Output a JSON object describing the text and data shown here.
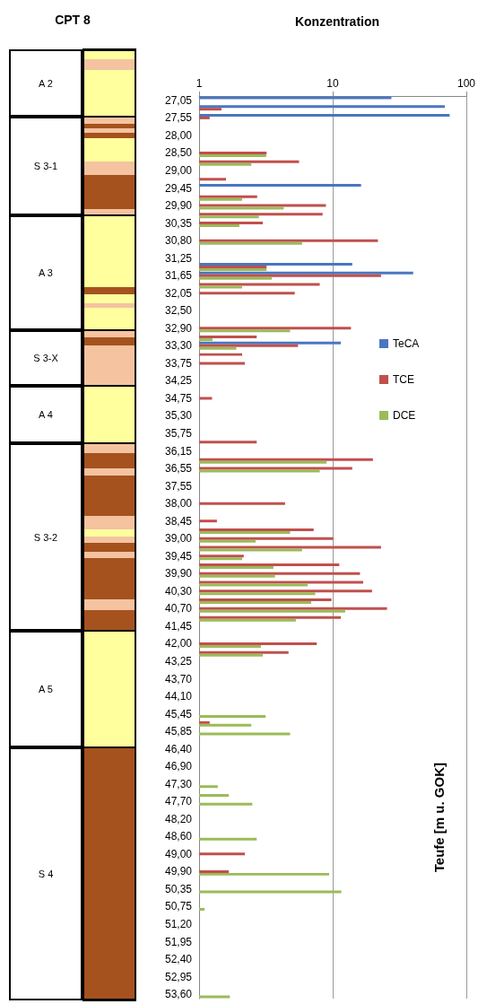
{
  "chart_data": [
    {
      "type": "other",
      "title": "CPT 8",
      "annotations": [
        "A 2",
        "S 3-1",
        "A 3",
        "S 3-X",
        "A 4",
        "S 3-2",
        "A 5",
        "S 4"
      ]
    },
    {
      "type": "bar",
      "orientation": "horizontal",
      "title": "Konzentration",
      "ylabel": "Teufe [m u. GOK]",
      "log": "x",
      "xlim": [
        1,
        100
      ],
      "xticks": [
        1,
        10,
        100
      ],
      "grid": "x",
      "legend": "right",
      "categories": [
        "27,05",
        null,
        "27,55",
        null,
        "28,00",
        null,
        "28,50",
        null,
        "29,00",
        null,
        "29,45",
        null,
        "29,90",
        null,
        "30,35",
        null,
        "30,80",
        null,
        "31,25",
        null,
        "31,65",
        null,
        "32,05",
        null,
        "32,50",
        null,
        "32,90",
        null,
        "33,30",
        null,
        "33,75",
        null,
        "34,25",
        null,
        "34,75",
        null,
        "35,30",
        null,
        "35,75",
        null,
        "36,15",
        null,
        "36,55",
        null,
        "37,55",
        null,
        "38,00",
        null,
        "38,45",
        null,
        "39,00",
        null,
        "39,45",
        null,
        "39,90",
        null,
        "40,30",
        null,
        "40,70",
        null,
        "41,45",
        null,
        "42,00",
        null,
        "43,25",
        null,
        "43,70",
        null,
        "44,10",
        null,
        "45,45",
        null,
        "45,85",
        null,
        "46,40",
        null,
        "46,90",
        null,
        "47,30",
        null,
        "47,70",
        null,
        "48,20",
        null,
        "48,60",
        null,
        "49,00",
        null,
        "49,90",
        null,
        "50,35",
        null,
        "50,75",
        null,
        "51,20",
        null,
        "51,95",
        null,
        "52,40",
        null,
        "52,95",
        null,
        "53,60"
      ],
      "series": [
        {
          "name": "TeCA",
          "color": "#4a76c0",
          "values": [
            27.5,
            69,
            75,
            null,
            null,
            null,
            null,
            null,
            null,
            null,
            16.3,
            null,
            null,
            null,
            null,
            null,
            null,
            null,
            null,
            14,
            40,
            null,
            null,
            null,
            null,
            null,
            null,
            null,
            11.5,
            null,
            null,
            null,
            null,
            null,
            null,
            null,
            null,
            null,
            null,
            null,
            null,
            null,
            null,
            null,
            null,
            null,
            null,
            null,
            null,
            null,
            null,
            null,
            null,
            null,
            null,
            null,
            null,
            null,
            null,
            null,
            null,
            null,
            null,
            null,
            null,
            null,
            null,
            null,
            null,
            null,
            null,
            null,
            null,
            null,
            null,
            null,
            null,
            null,
            null,
            null,
            null,
            null,
            null,
            null,
            null,
            null,
            null,
            null,
            null,
            null,
            null,
            null,
            null,
            null,
            null,
            null,
            null,
            null,
            null,
            null,
            null,
            null,
            null
          ]
        },
        {
          "name": "TCE",
          "color": "#c0504d",
          "values": [
            null,
            1.47,
            1.2,
            null,
            null,
            null,
            3.2,
            5.6,
            null,
            1.59,
            null,
            2.72,
            8.9,
            8.4,
            3.0,
            null,
            21.8,
            null,
            null,
            3.2,
            23,
            8.0,
            5.2,
            null,
            null,
            null,
            13.7,
            2.7,
            5.5,
            2.1,
            2.2,
            null,
            null,
            null,
            1.25,
            null,
            null,
            null,
            null,
            2.7,
            null,
            20,
            14,
            null,
            null,
            null,
            4.4,
            null,
            1.36,
            7.2,
            10.1,
            23,
            2.16,
            11.2,
            16,
            16.9,
            19.7,
            9.8,
            25.5,
            11.5,
            null,
            null,
            7.6,
            4.67,
            null,
            null,
            null,
            null,
            null,
            null,
            null,
            1.2,
            null,
            null,
            null,
            null,
            null,
            null,
            null,
            null,
            null,
            null,
            null,
            null,
            null,
            null,
            2.2,
            null,
            1.67,
            null,
            null,
            null,
            null,
            null,
            null,
            null,
            null,
            null,
            null,
            null,
            null,
            null,
            null
          ]
        },
        {
          "name": "DCE",
          "color": "#9bbb59",
          "values": [
            null,
            null,
            null,
            null,
            null,
            null,
            3.18,
            2.46,
            null,
            null,
            null,
            2.1,
            4.3,
            2.8,
            2.0,
            null,
            5.9,
            null,
            null,
            3.2,
            3.5,
            2.1,
            null,
            null,
            null,
            null,
            4.8,
            1.26,
            1.9,
            null,
            null,
            null,
            null,
            null,
            null,
            null,
            null,
            null,
            null,
            null,
            null,
            9.0,
            8.0,
            null,
            null,
            null,
            null,
            null,
            null,
            4.8,
            2.65,
            5.9,
            2.1,
            3.6,
            3.7,
            6.5,
            7.4,
            6.9,
            12.4,
            5.3,
            null,
            null,
            2.9,
            3.0,
            null,
            null,
            null,
            null,
            null,
            null,
            3.15,
            2.46,
            4.8,
            null,
            null,
            null,
            null,
            null,
            1.38,
            1.67,
            2.5,
            null,
            null,
            null,
            2.7,
            null,
            null,
            null,
            9.4,
            null,
            11.6,
            null,
            1.1,
            null,
            null,
            null,
            null,
            null,
            null,
            null,
            null,
            null,
            1.7
          ]
        }
      ]
    }
  ]
}
